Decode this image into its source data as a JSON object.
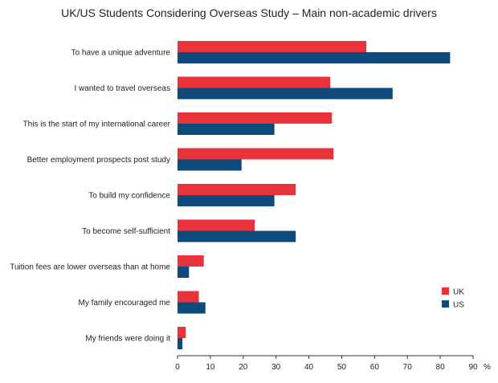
{
  "chart_data": {
    "type": "bar",
    "orientation": "horizontal",
    "title": "UK/US Students Considering Overseas Study – Main non-academic drivers",
    "categories": [
      "To have a unique adventure",
      "I wanted to travel overseas",
      "This is the start of my international career",
      "Better employment prospects post study",
      "To build my confidence",
      "To become self-sufficient",
      "Tuition fees are lower overseas than at home",
      "My family encouraged me",
      "My friends were doing it"
    ],
    "series": [
      {
        "name": "UK",
        "color": "#e8333a",
        "values": [
          57.5,
          46.5,
          47,
          47.5,
          36,
          23.5,
          8,
          6.5,
          2.5
        ]
      },
      {
        "name": "US",
        "color": "#0f4a7c",
        "values": [
          83,
          65.5,
          29.5,
          19.5,
          29.5,
          36,
          3.5,
          8.5,
          1.5
        ]
      }
    ],
    "xlim": [
      0,
      90
    ],
    "xticks": [
      0,
      10,
      20,
      30,
      40,
      50,
      60,
      70,
      80,
      90
    ],
    "x_unit": "%",
    "grid": false,
    "legend_position": "right"
  }
}
